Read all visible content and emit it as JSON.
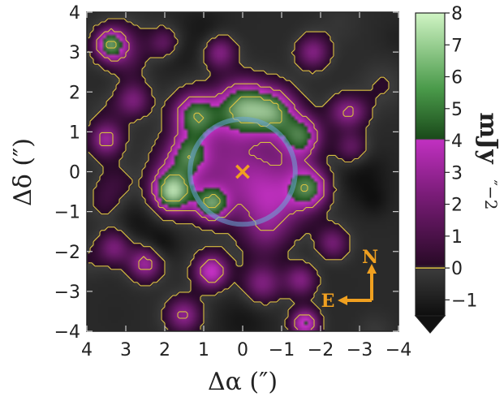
{
  "chart_data": {
    "type": "heatmap",
    "xlabel": "Δα (″)",
    "ylabel": "Δδ (″)",
    "xlim": [
      4,
      -4
    ],
    "ylim": [
      -4,
      4
    ],
    "x_ticks": [
      "4",
      "3",
      "2",
      "1",
      "0",
      "−1",
      "−2",
      "−3",
      "−4"
    ],
    "x_tick_values": [
      4,
      3,
      2,
      1,
      0,
      -1,
      -2,
      -3,
      -4
    ],
    "y_ticks": [
      "4",
      "3",
      "2",
      "1",
      "0",
      "−1",
      "−2",
      "−3",
      "−4"
    ],
    "y_tick_values": [
      4,
      3,
      2,
      1,
      0,
      -1,
      -2,
      -3,
      -4
    ],
    "colorbar": {
      "label": "mJy",
      "exponent": "″−2",
      "range": [
        -1.5,
        8
      ],
      "ticks": [
        "8",
        "7",
        "6",
        "5",
        "4",
        "3",
        "2",
        "1",
        "0",
        "−1"
      ],
      "tick_values": [
        8,
        7,
        6,
        5,
        4,
        3,
        2,
        1,
        0,
        -1
      ],
      "colors": {
        "negative": "#141414",
        "zero": "#2a2a2a",
        "purple_low": "#4a1048",
        "purple_high": "#c030c0",
        "green_low": "#1c5a1c",
        "green_high": "#c8f0b8",
        "contour": "#d8c040",
        "ring": "#6aa8d8",
        "marker": "#f0a020"
      }
    },
    "center_marker": {
      "x": 0,
      "y": 0,
      "symbol": "×"
    },
    "ring_radius_arcsec": 1.35,
    "emission_blobs": [
      {
        "x": 0.0,
        "y": 1.6,
        "peak": 5.5,
        "sigma": 0.45
      },
      {
        "x": 1.2,
        "y": 1.4,
        "peak": 5.0,
        "sigma": 0.4
      },
      {
        "x": -0.8,
        "y": 1.5,
        "peak": 4.8,
        "sigma": 0.4
      },
      {
        "x": -1.5,
        "y": 0.9,
        "peak": 4.5,
        "sigma": 0.35
      },
      {
        "x": 1.8,
        "y": -0.5,
        "peak": 7.5,
        "sigma": 0.35
      },
      {
        "x": 1.4,
        "y": 0.4,
        "peak": 4.2,
        "sigma": 0.35
      },
      {
        "x": -1.7,
        "y": -0.4,
        "peak": 4.6,
        "sigma": 0.35
      },
      {
        "x": 0.8,
        "y": -0.8,
        "peak": 5.2,
        "sigma": 0.3
      },
      {
        "x": 0.0,
        "y": 0.2,
        "peak": 2.8,
        "sigma": 0.9
      },
      {
        "x": -0.8,
        "y": -0.8,
        "peak": 2.5,
        "sigma": 0.6
      },
      {
        "x": 3.4,
        "y": 3.2,
        "peak": 4.5,
        "sigma": 0.25
      },
      {
        "x": 2.0,
        "y": 3.2,
        "peak": 2.6,
        "sigma": 0.3
      },
      {
        "x": 0.6,
        "y": 3.0,
        "peak": 2.8,
        "sigma": 0.3
      },
      {
        "x": -1.8,
        "y": 3.0,
        "peak": 2.5,
        "sigma": 0.3
      },
      {
        "x": -2.6,
        "y": 1.5,
        "peak": 2.2,
        "sigma": 0.3
      },
      {
        "x": 3.5,
        "y": 0.8,
        "peak": 3.0,
        "sigma": 0.3
      },
      {
        "x": 3.3,
        "y": -1.9,
        "peak": 2.4,
        "sigma": 0.3
      },
      {
        "x": 2.5,
        "y": -2.3,
        "peak": 3.2,
        "sigma": 0.3
      },
      {
        "x": 0.8,
        "y": -2.5,
        "peak": 4.0,
        "sigma": 0.3
      },
      {
        "x": -0.5,
        "y": -2.8,
        "peak": 2.5,
        "sigma": 0.35
      },
      {
        "x": -1.5,
        "y": -2.7,
        "peak": 2.6,
        "sigma": 0.3
      },
      {
        "x": -1.6,
        "y": -3.8,
        "peak": 4.2,
        "sigma": 0.25
      },
      {
        "x": -2.3,
        "y": -1.8,
        "peak": 2.3,
        "sigma": 0.3
      },
      {
        "x": 2.8,
        "y": 1.8,
        "peak": 2.2,
        "sigma": 0.3
      },
      {
        "x": -2.8,
        "y": 0.6,
        "peak": 2.0,
        "sigma": 0.3
      },
      {
        "x": 1.5,
        "y": -3.6,
        "peak": 2.2,
        "sigma": 0.3
      }
    ],
    "compass": {
      "north": "N",
      "east": "E"
    }
  }
}
